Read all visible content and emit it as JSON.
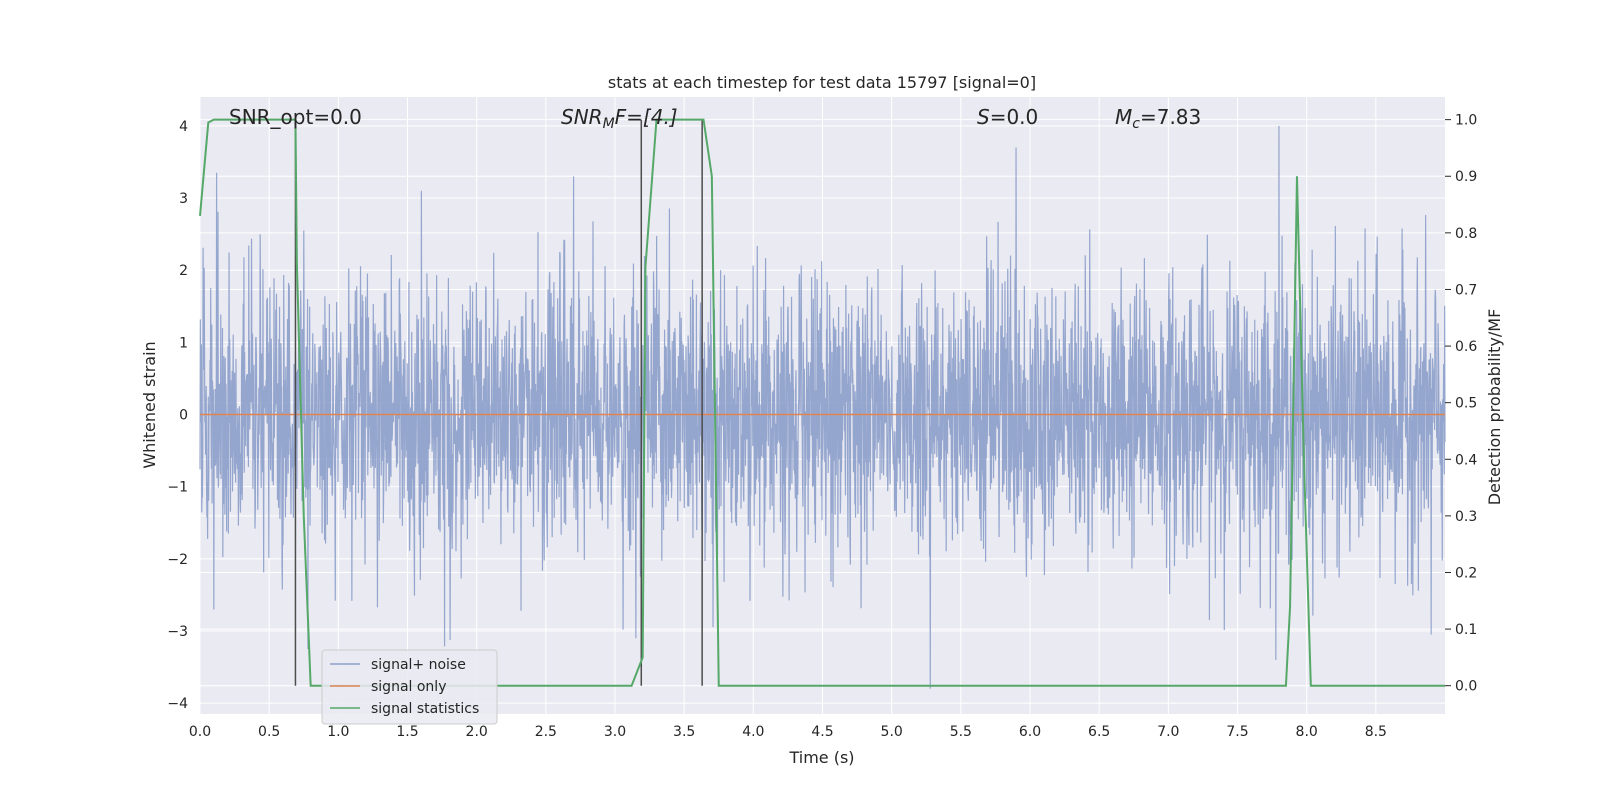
{
  "chart_data": {
    "type": "line",
    "title": "stats at each timestep for test data 15797 [signal=0]",
    "xlabel": "Time (s)",
    "ylabel": "Whitened strain",
    "ylabel_right": "Detection probability/MF",
    "xlim": [
      0.0,
      9.0
    ],
    "ylim": [
      -4.15,
      4.4
    ],
    "ylim_right": [
      -0.05,
      1.04
    ],
    "x_ticks": [
      "0.0",
      "0.5",
      "1.0",
      "1.5",
      "2.0",
      "2.5",
      "3.0",
      "3.5",
      "4.0",
      "4.5",
      "5.0",
      "5.5",
      "6.0",
      "6.5",
      "7.0",
      "7.5",
      "8.0",
      "8.5"
    ],
    "y_ticks": [
      "4",
      "3",
      "2",
      "1",
      "0",
      "−1",
      "−2",
      "−3",
      "−4"
    ],
    "y_right_ticks": [
      "1.0",
      "0.9",
      "0.8",
      "0.7",
      "0.6",
      "0.5",
      "0.4",
      "0.3",
      "0.2",
      "0.1",
      "0.0"
    ],
    "grid": true,
    "legend_position": "lower-left",
    "annotations": {
      "snr_opt": "SNR_opt=0.0",
      "snr_mf_main": "SNR",
      "snr_mf_sub": "M",
      "snr_mf_tail": "F=[4.]",
      "s_main": "S",
      "s_tail": "=0.0",
      "mc_main": "M",
      "mc_sub": "c",
      "mc_tail": "=7.83"
    },
    "series": [
      {
        "name": "signal+ noise",
        "color": "#8c9fca",
        "description_of_values": "whitened noise, roughly Gaussian, amplitude mostly within ±2.5, extremes about -3.8 to 4.0",
        "peaks": [
          [
            0.12,
            3.35
          ],
          [
            0.75,
            2.55
          ],
          [
            0.78,
            -3.25
          ],
          [
            1.6,
            3.1
          ],
          [
            2.7,
            3.3
          ],
          [
            3.15,
            -3.1
          ],
          [
            5.28,
            -3.8
          ],
          [
            5.9,
            3.7
          ],
          [
            7.8,
            4.0
          ],
          [
            8.9,
            -3.05
          ]
        ]
      },
      {
        "name": "signal only",
        "color": "#dd8452",
        "values_constant": 0
      },
      {
        "name": "signal statistics",
        "color": "#55a868",
        "axis": "right",
        "x": [
          0.0,
          0.06,
          0.1,
          0.15,
          0.68,
          0.69,
          0.7,
          0.75,
          0.8,
          0.82,
          3.12,
          3.2,
          3.22,
          3.3,
          3.63,
          3.64,
          3.7,
          3.75,
          7.8,
          7.85,
          7.88,
          7.93,
          7.98,
          8.03,
          8.07,
          8.5,
          9.0
        ],
        "y": [
          0.83,
          0.995,
          1.0,
          1.0,
          1.0,
          1.0,
          0.75,
          0.3,
          0.0,
          0.0,
          0.0,
          0.05,
          0.74,
          1.0,
          1.0,
          1.0,
          0.9,
          0.0,
          0.0,
          0.0,
          0.14,
          0.9,
          0.4,
          0.0,
          0.0,
          0.0,
          0.0
        ]
      }
    ],
    "vertical_markers_x": [
      0.69,
      3.19,
      3.63
    ],
    "vertical_markers_color": "#4d4d4d",
    "horizontal_band_values_right": [
      0.5,
      0.4,
      0.3,
      0.6,
      0.7
    ]
  }
}
